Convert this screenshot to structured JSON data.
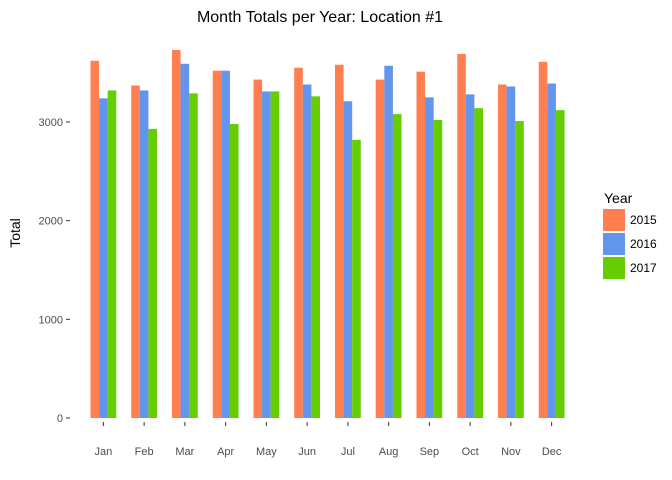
{
  "chart_data": {
    "type": "bar",
    "title": "Month Totals per Year: Location #1",
    "xlabel": "",
    "ylabel": "Total",
    "categories": [
      "Jan",
      "Feb",
      "Mar",
      "Apr",
      "May",
      "Jun",
      "Jul",
      "Aug",
      "Sep",
      "Oct",
      "Nov",
      "Dec"
    ],
    "series": [
      {
        "name": "2015",
        "color": "#FF7F50",
        "values": [
          3620,
          3370,
          3730,
          3520,
          3430,
          3550,
          3580,
          3430,
          3510,
          3690,
          3380,
          3610
        ]
      },
      {
        "name": "2016",
        "color": "#6495ED",
        "values": [
          3240,
          3320,
          3590,
          3520,
          3310,
          3380,
          3210,
          3570,
          3250,
          3280,
          3360,
          3390
        ]
      },
      {
        "name": "2017",
        "color": "#66CD00",
        "values": [
          3320,
          2930,
          3290,
          2980,
          3310,
          3260,
          2820,
          3080,
          3020,
          3140,
          3010,
          3120
        ]
      }
    ],
    "ylim": [
      0,
      3800
    ],
    "yticks": [
      0,
      1000,
      2000,
      3000
    ],
    "grid": false,
    "legend": {
      "title": "Year",
      "placement": "right"
    }
  }
}
